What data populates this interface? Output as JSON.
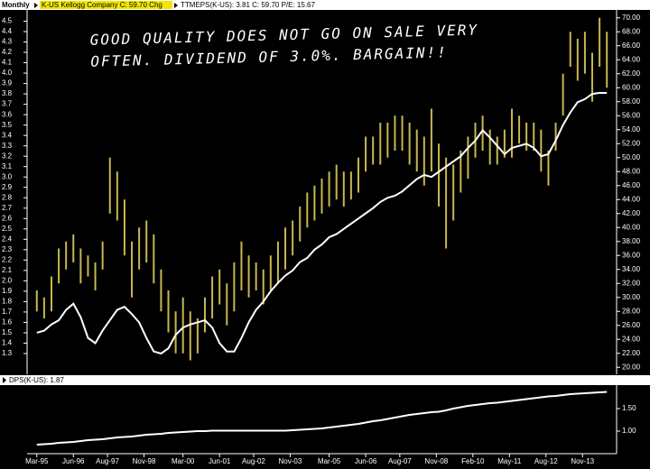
{
  "chart_data": [
    {
      "type": "range",
      "interval": "Monthly",
      "legend": [
        "K-US Kellogg Company C: 59.70 Chg",
        "TTMEPS(K-US): 3.81 C: 59.70 P/E: 15.67"
      ],
      "annotations": [
        "GOOD QUALITY DOES NOT GO ON SALE VERY",
        "OFTEN. DIVIDEND OF 3.0%. BARGAIN!!"
      ],
      "x": [
        "Mar-95",
        "Jun-95",
        "Sep-95",
        "Dec-95",
        "Mar-96",
        "Jun-96",
        "Sep-96",
        "Dec-96",
        "Mar-97",
        "Jun-97",
        "Sep-97",
        "Dec-97",
        "Mar-98",
        "Jun-98",
        "Sep-98",
        "Dec-98",
        "Mar-99",
        "Jun-99",
        "Sep-99",
        "Dec-99",
        "Mar-00",
        "Jun-00",
        "Sep-00",
        "Dec-00",
        "Mar-01",
        "Jun-01",
        "Sep-01",
        "Dec-01",
        "Mar-02",
        "Jun-02",
        "Sep-02",
        "Dec-02",
        "Mar-03",
        "Jun-03",
        "Sep-03",
        "Dec-03",
        "Mar-04",
        "Jun-04",
        "Sep-04",
        "Dec-04",
        "Mar-05",
        "Jun-05",
        "Sep-05",
        "Dec-05",
        "Mar-06",
        "Jun-06",
        "Sep-06",
        "Dec-06",
        "Mar-07",
        "Jun-07",
        "Sep-07",
        "Dec-07",
        "Mar-08",
        "Jun-08",
        "Sep-08",
        "Dec-08",
        "Mar-09",
        "Jun-09",
        "Sep-09",
        "Dec-09",
        "Mar-10",
        "Jun-10",
        "Sep-10",
        "Dec-10",
        "Mar-11",
        "Jun-11",
        "Sep-11",
        "Dec-11",
        "Mar-12",
        "Jun-12",
        "Sep-12",
        "Dec-12",
        "Mar-13",
        "Jun-13",
        "Sep-13",
        "Dec-13",
        "Mar-14",
        "Jun-14",
        "Sep-14"
      ],
      "xlim": [
        "Nov-94",
        "Jan-15"
      ],
      "ylim": [
        1.1,
        4.6
      ],
      "yticks": [
        1.3,
        1.4,
        1.5,
        1.6,
        1.7,
        1.8,
        1.9,
        {
          "value": 2,
          "label": "2.0"
        },
        2.1,
        2.2,
        2.3,
        2.4,
        2.5,
        2.6,
        2.7,
        2.8,
        2.9,
        {
          "value": 3,
          "label": "3.0"
        },
        3.1,
        3.2,
        3.3,
        3.4,
        3.5,
        3.6,
        3.7,
        3.8,
        3.9,
        {
          "value": 4,
          "label": "4.0"
        },
        4.1,
        4.2,
        4.3,
        4.4,
        4.5
      ],
      "y2lim": [
        19,
        71
      ],
      "y2ticks": [
        {
          "value": 20,
          "label": "20.00"
        },
        {
          "value": 22,
          "label": "22.00"
        },
        {
          "value": 24,
          "label": "24.00"
        },
        {
          "value": 26,
          "label": "26.00"
        },
        {
          "value": 28,
          "label": "28.00"
        },
        {
          "value": 30,
          "label": "30.00"
        },
        {
          "value": 32,
          "label": "32.00"
        },
        {
          "value": 34,
          "label": "34.00"
        },
        {
          "value": 36,
          "label": "36.00"
        },
        {
          "value": 38,
          "label": "38.00"
        },
        {
          "value": 40,
          "label": "40.00"
        },
        {
          "value": 42,
          "label": "42.00"
        },
        {
          "value": 44,
          "label": "44.00"
        },
        {
          "value": 46,
          "label": "46.00"
        },
        {
          "value": 48,
          "label": "48.00"
        },
        {
          "value": 50,
          "label": "50.00"
        },
        {
          "value": 52,
          "label": "52.00"
        },
        {
          "value": 54,
          "label": "54.00"
        },
        {
          "value": 56,
          "label": "56.00"
        },
        {
          "value": 58,
          "label": "58.00"
        },
        {
          "value": 60,
          "label": "60.00"
        },
        {
          "value": 62,
          "label": "62.00"
        },
        {
          "value": 64,
          "label": "64.00"
        },
        {
          "value": 66,
          "label": "66.00"
        },
        {
          "value": 68,
          "label": "68.00"
        },
        {
          "value": 70,
          "label": "70.00"
        }
      ],
      "series": [
        {
          "color": "#c9b650",
          "axis": "y2",
          "high": [
            31,
            30,
            33,
            37,
            38,
            39,
            37,
            36,
            35,
            38,
            50,
            48,
            44,
            38,
            40,
            41,
            39,
            34,
            31,
            28,
            30,
            28,
            27,
            30,
            33,
            34,
            32,
            35,
            38,
            36,
            35,
            34,
            36,
            38,
            40,
            41,
            43,
            45,
            46,
            47,
            48,
            49,
            48,
            48,
            50,
            53,
            53,
            55,
            55,
            56,
            56,
            55,
            54,
            53,
            57,
            52,
            50,
            49,
            51,
            53,
            55,
            56,
            54,
            53,
            54,
            57,
            56,
            55,
            55,
            54,
            51,
            55,
            62,
            68,
            67,
            68,
            65,
            70,
            68
          ],
          "low": [
            28,
            27,
            28,
            32,
            34,
            35,
            32,
            33,
            31,
            34,
            42,
            41,
            36,
            30,
            34,
            35,
            32,
            28,
            25,
            22,
            22,
            21,
            22,
            25,
            27,
            29,
            26,
            28,
            31,
            30,
            31,
            29,
            31,
            32,
            34,
            36,
            38,
            40,
            41,
            42,
            43,
            44,
            43,
            44,
            45,
            48,
            49,
            49,
            50,
            51,
            51,
            49,
            48,
            46,
            48,
            43,
            37,
            41,
            45,
            47,
            50,
            51,
            49,
            49,
            50,
            50,
            52,
            51,
            51,
            48,
            46,
            51,
            56,
            63,
            61,
            62,
            58,
            63,
            60
          ]
        },
        {
          "color": "#ffffff",
          "values": [
            1.5,
            1.52,
            1.58,
            1.62,
            1.72,
            1.78,
            1.65,
            1.45,
            1.4,
            1.52,
            1.62,
            1.72,
            1.75,
            1.68,
            1.6,
            1.45,
            1.32,
            1.3,
            1.35,
            1.48,
            1.55,
            1.58,
            1.6,
            1.62,
            1.55,
            1.4,
            1.32,
            1.32,
            1.45,
            1.6,
            1.72,
            1.8,
            1.9,
            1.98,
            2.05,
            2.1,
            2.18,
            2.22,
            2.3,
            2.35,
            2.42,
            2.45,
            2.5,
            2.55,
            2.6,
            2.65,
            2.7,
            2.76,
            2.8,
            2.82,
            2.86,
            2.92,
            2.98,
            3.02,
            3.0,
            3.05,
            3.1,
            3.15,
            3.2,
            3.28,
            3.35,
            3.45,
            3.38,
            3.3,
            3.22,
            3.28,
            3.3,
            3.32,
            3.28,
            3.2,
            3.22,
            3.35,
            3.5,
            3.62,
            3.72,
            3.75,
            3.8,
            3.81,
            3.81
          ]
        }
      ]
    },
    {
      "type": "line",
      "legend": [
        "DPS(K-US): 1.87"
      ],
      "x": [
        "Mar-95",
        "Jun-95",
        "Sep-95",
        "Dec-95",
        "Mar-96",
        "Jun-96",
        "Sep-96",
        "Dec-96",
        "Mar-97",
        "Jun-97",
        "Sep-97",
        "Dec-97",
        "Mar-98",
        "Jun-98",
        "Sep-98",
        "Dec-98",
        "Mar-99",
        "Jun-99",
        "Sep-99",
        "Dec-99",
        "Mar-00",
        "Jun-00",
        "Sep-00",
        "Dec-00",
        "Mar-01",
        "Jun-01",
        "Sep-01",
        "Dec-01",
        "Mar-02",
        "Jun-02",
        "Sep-02",
        "Dec-02",
        "Mar-03",
        "Jun-03",
        "Sep-03",
        "Dec-03",
        "Mar-04",
        "Jun-04",
        "Sep-04",
        "Dec-04",
        "Mar-05",
        "Jun-05",
        "Sep-05",
        "Dec-05",
        "Mar-06",
        "Jun-06",
        "Sep-06",
        "Dec-06",
        "Mar-07",
        "Jun-07",
        "Sep-07",
        "Dec-07",
        "Mar-08",
        "Jun-08",
        "Sep-08",
        "Dec-08",
        "Mar-09",
        "Jun-09",
        "Sep-09",
        "Dec-09",
        "Mar-10",
        "Jun-10",
        "Sep-10",
        "Dec-10",
        "Mar-11",
        "Jun-11",
        "Sep-11",
        "Dec-11",
        "Mar-12",
        "Jun-12",
        "Sep-12",
        "Dec-12",
        "Mar-13",
        "Jun-13",
        "Sep-13",
        "Dec-13",
        "Mar-14",
        "Jun-14",
        "Sep-14"
      ],
      "xlim": [
        "Nov-94",
        "Jan-15"
      ],
      "xticks": [
        "Mar-95",
        "Jun-96",
        "Aug-97",
        "Nov-98",
        "Mar-00",
        "Jun-01",
        "Aug-02",
        "Nov-03",
        "Mar-05",
        "Jun-06",
        "Aug-07",
        "Nov-08",
        "Feb-10",
        "May-11",
        "Aug-12",
        "Nov-13"
      ],
      "ylim": [
        0.5,
        2.0
      ],
      "yticks": [
        {
          "value": 1,
          "label": "1.00"
        },
        {
          "value": 1.5,
          "label": "1.50"
        }
      ],
      "series": [
        {
          "color": "#ffffff",
          "values": [
            0.7,
            0.71,
            0.72,
            0.74,
            0.75,
            0.76,
            0.78,
            0.8,
            0.81,
            0.82,
            0.84,
            0.86,
            0.87,
            0.88,
            0.9,
            0.92,
            0.93,
            0.94,
            0.96,
            0.97,
            0.98,
            0.99,
            1.0,
            1.0,
            1.01,
            1.01,
            1.01,
            1.01,
            1.01,
            1.01,
            1.01,
            1.01,
            1.01,
            1.01,
            1.01,
            1.02,
            1.03,
            1.04,
            1.05,
            1.06,
            1.08,
            1.1,
            1.12,
            1.14,
            1.16,
            1.19,
            1.22,
            1.24,
            1.27,
            1.3,
            1.33,
            1.36,
            1.38,
            1.4,
            1.42,
            1.43,
            1.46,
            1.5,
            1.53,
            1.56,
            1.58,
            1.6,
            1.62,
            1.63,
            1.65,
            1.67,
            1.69,
            1.71,
            1.73,
            1.75,
            1.77,
            1.78,
            1.8,
            1.82,
            1.83,
            1.84,
            1.85,
            1.86,
            1.87
          ]
        }
      ]
    }
  ]
}
